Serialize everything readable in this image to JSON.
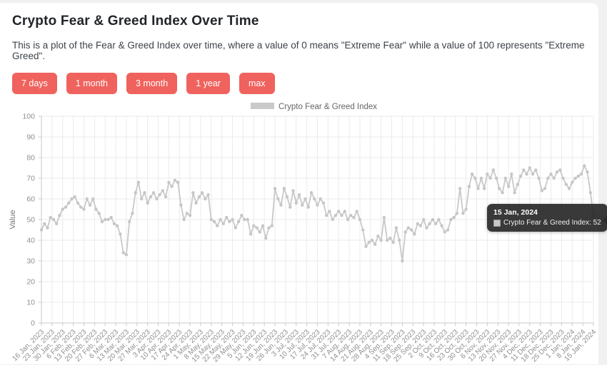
{
  "page": {
    "title": "Crypto Fear & Greed Index Over Time",
    "description": "This is a plot of the Fear & Greed Index over time, where a value of 0 means \"Extreme Fear\" while a value of 100 represents \"Extreme Greed\"."
  },
  "range_buttons": [
    {
      "label": "7 days"
    },
    {
      "label": "1 month"
    },
    {
      "label": "3 month"
    },
    {
      "label": "1 year"
    },
    {
      "label": "max"
    }
  ],
  "colors": {
    "accent": "#f0625d",
    "line": "#c9c9c9",
    "marker": "#c6c6c6",
    "grid": "#ebebeb",
    "axis": "#c9c9c9",
    "tick_text": "#8f8f8f",
    "axis_title": "#777777",
    "legend_text": "#666666",
    "tooltip_bg": "#2a2a2a"
  },
  "legend": {
    "label": "Crypto Fear & Greed Index",
    "swatch_color": "#c9c9c9"
  },
  "tooltip": {
    "date": "15 Jan, 2024",
    "series": "Crypto Fear & Greed Index",
    "value": 52,
    "text": "Crypto Fear & Greed Index: 52"
  },
  "chart_data": {
    "type": "line",
    "title": "Crypto Fear & Greed Index",
    "xlabel": "",
    "ylabel": "Value",
    "ylim": [
      0,
      100
    ],
    "ytick_step": 10,
    "grid": true,
    "legend_position": "top",
    "x_start": "16 Jan, 2023",
    "x_end": "15 Jan, 2024",
    "x_span_days": 365,
    "x_tick_labels": [
      "16 Jan, 2023",
      "23 Jan, 2023",
      "30 Jan, 2023",
      "6 Feb, 2023",
      "13 Feb, 2023",
      "20 Feb, 2023",
      "27 Feb, 2023",
      "6 Mar, 2023",
      "13 Mar, 2023",
      "20 Mar, 2023",
      "27 Mar, 2023",
      "3 Apr, 2023",
      "10 Apr, 2023",
      "17 Apr, 2023",
      "24 Apr, 2023",
      "1 May, 2023",
      "8 May, 2023",
      "15 May, 2023",
      "22 May, 2023",
      "29 May, 2023",
      "5 Jun, 2023",
      "12 Jun, 2023",
      "19 Jun, 2023",
      "26 Jun, 2023",
      "3 Jul, 2023",
      "10 Jul, 2023",
      "17 Jul, 2023",
      "24 Jul, 2023",
      "31 Jul, 2023",
      "7 Aug, 2023",
      "14 Aug, 2023",
      "21 Aug, 2023",
      "28 Aug, 2023",
      "4 Sep, 2023",
      "11 Sep, 2023",
      "18 Sep, 2023",
      "25 Sep, 2023",
      "2 Oct, 2023",
      "9 Oct, 2023",
      "16 Oct, 2023",
      "23 Oct, 2023",
      "30 Oct, 2023",
      "6 Nov, 2023",
      "13 Nov, 2023",
      "20 Nov, 2023",
      "27 Nov, 2023",
      "4 Dec, 2023",
      "11 Dec, 2023",
      "18 Dec, 2023",
      "25 Dec, 2023",
      "1 Jan, 2024",
      "8 Jan, 2024",
      "15 Jan, 2024"
    ],
    "series": [
      {
        "name": "Crypto Fear & Greed Index",
        "sample_interval_days": 2,
        "first_sample_date": "16 Jan, 2023",
        "last_sample_date": "15 Jan, 2024",
        "values": [
          45,
          48,
          46,
          51,
          50,
          48,
          52,
          55,
          56,
          58,
          60,
          61,
          58,
          56,
          55,
          60,
          57,
          60,
          55,
          53,
          49,
          50,
          50,
          51,
          48,
          47,
          43,
          34,
          33,
          49,
          53,
          63,
          68,
          60,
          63,
          58,
          61,
          63,
          60,
          62,
          64,
          61,
          68,
          66,
          69,
          68,
          57,
          50,
          53,
          52,
          63,
          58,
          61,
          63,
          60,
          62,
          50,
          49,
          47,
          50,
          48,
          51,
          49,
          50,
          46,
          49,
          52,
          50,
          50,
          43,
          47,
          46,
          44,
          47,
          41,
          46,
          47,
          65,
          60,
          57,
          65,
          61,
          56,
          64,
          58,
          62,
          57,
          60,
          56,
          63,
          60,
          57,
          60,
          58,
          52,
          54,
          50,
          52,
          54,
          52,
          54,
          50,
          52,
          51,
          54,
          50,
          45,
          37,
          39,
          40,
          38,
          42,
          40,
          51,
          40,
          41,
          39,
          46,
          40,
          30,
          44,
          46,
          45,
          43,
          48,
          47,
          50,
          46,
          48,
          50,
          48,
          50,
          47,
          44,
          45,
          50,
          51,
          53,
          65,
          53,
          55,
          66,
          72,
          70,
          65,
          70,
          65,
          72,
          70,
          74,
          70,
          65,
          63,
          70,
          66,
          72,
          63,
          67,
          71,
          74,
          72,
          75,
          72,
          74,
          70,
          64,
          65,
          70,
          72,
          70,
          73,
          74,
          70,
          67,
          65,
          68,
          70,
          71,
          72,
          76,
          73,
          63,
          52
        ]
      }
    ]
  }
}
